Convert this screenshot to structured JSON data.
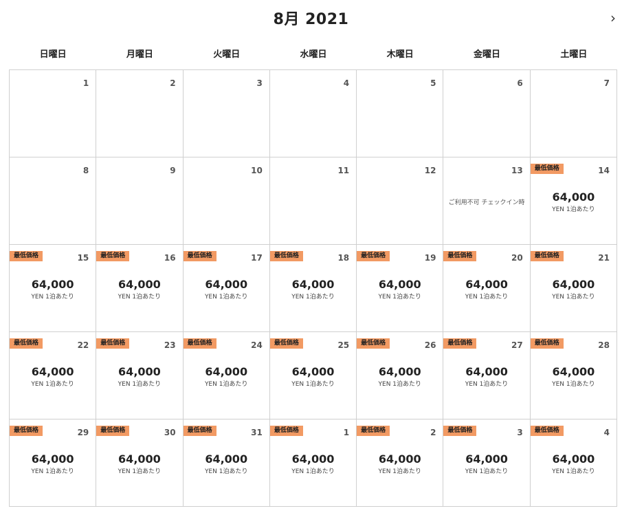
{
  "header": {
    "title": "8月 2021",
    "next_icon": "chevron-right-icon",
    "next_glyph": "›"
  },
  "weekdays": [
    "日曜日",
    "月曜日",
    "火曜日",
    "水曜日",
    "木曜日",
    "金曜日",
    "土曜日"
  ],
  "labels": {
    "badge": "最低価格",
    "unit": "YEN 1泊あたり",
    "unavailable": "ご利用不可 チェックイン時"
  },
  "colors": {
    "badge": "#f29a63",
    "border": "#cfcfcf"
  },
  "days": [
    {
      "day": "1"
    },
    {
      "day": "2"
    },
    {
      "day": "3"
    },
    {
      "day": "4"
    },
    {
      "day": "5"
    },
    {
      "day": "6"
    },
    {
      "day": "7"
    },
    {
      "day": "8"
    },
    {
      "day": "9"
    },
    {
      "day": "10"
    },
    {
      "day": "11"
    },
    {
      "day": "12"
    },
    {
      "day": "13",
      "unavailable": true
    },
    {
      "day": "14",
      "badge": true,
      "price": "64,000"
    },
    {
      "day": "15",
      "badge": true,
      "price": "64,000"
    },
    {
      "day": "16",
      "badge": true,
      "price": "64,000"
    },
    {
      "day": "17",
      "badge": true,
      "price": "64,000"
    },
    {
      "day": "18",
      "badge": true,
      "price": "64,000"
    },
    {
      "day": "19",
      "badge": true,
      "price": "64,000"
    },
    {
      "day": "20",
      "badge": true,
      "price": "64,000"
    },
    {
      "day": "21",
      "badge": true,
      "price": "64,000"
    },
    {
      "day": "22",
      "badge": true,
      "price": "64,000"
    },
    {
      "day": "23",
      "badge": true,
      "price": "64,000"
    },
    {
      "day": "24",
      "badge": true,
      "price": "64,000"
    },
    {
      "day": "25",
      "badge": true,
      "price": "64,000"
    },
    {
      "day": "26",
      "badge": true,
      "price": "64,000"
    },
    {
      "day": "27",
      "badge": true,
      "price": "64,000"
    },
    {
      "day": "28",
      "badge": true,
      "price": "64,000"
    },
    {
      "day": "29",
      "badge": true,
      "price": "64,000"
    },
    {
      "day": "30",
      "badge": true,
      "price": "64,000"
    },
    {
      "day": "31",
      "badge": true,
      "price": "64,000"
    },
    {
      "day": "1",
      "badge": true,
      "price": "64,000"
    },
    {
      "day": "2",
      "badge": true,
      "price": "64,000"
    },
    {
      "day": "3",
      "badge": true,
      "price": "64,000"
    },
    {
      "day": "4",
      "badge": true,
      "price": "64,000"
    }
  ]
}
